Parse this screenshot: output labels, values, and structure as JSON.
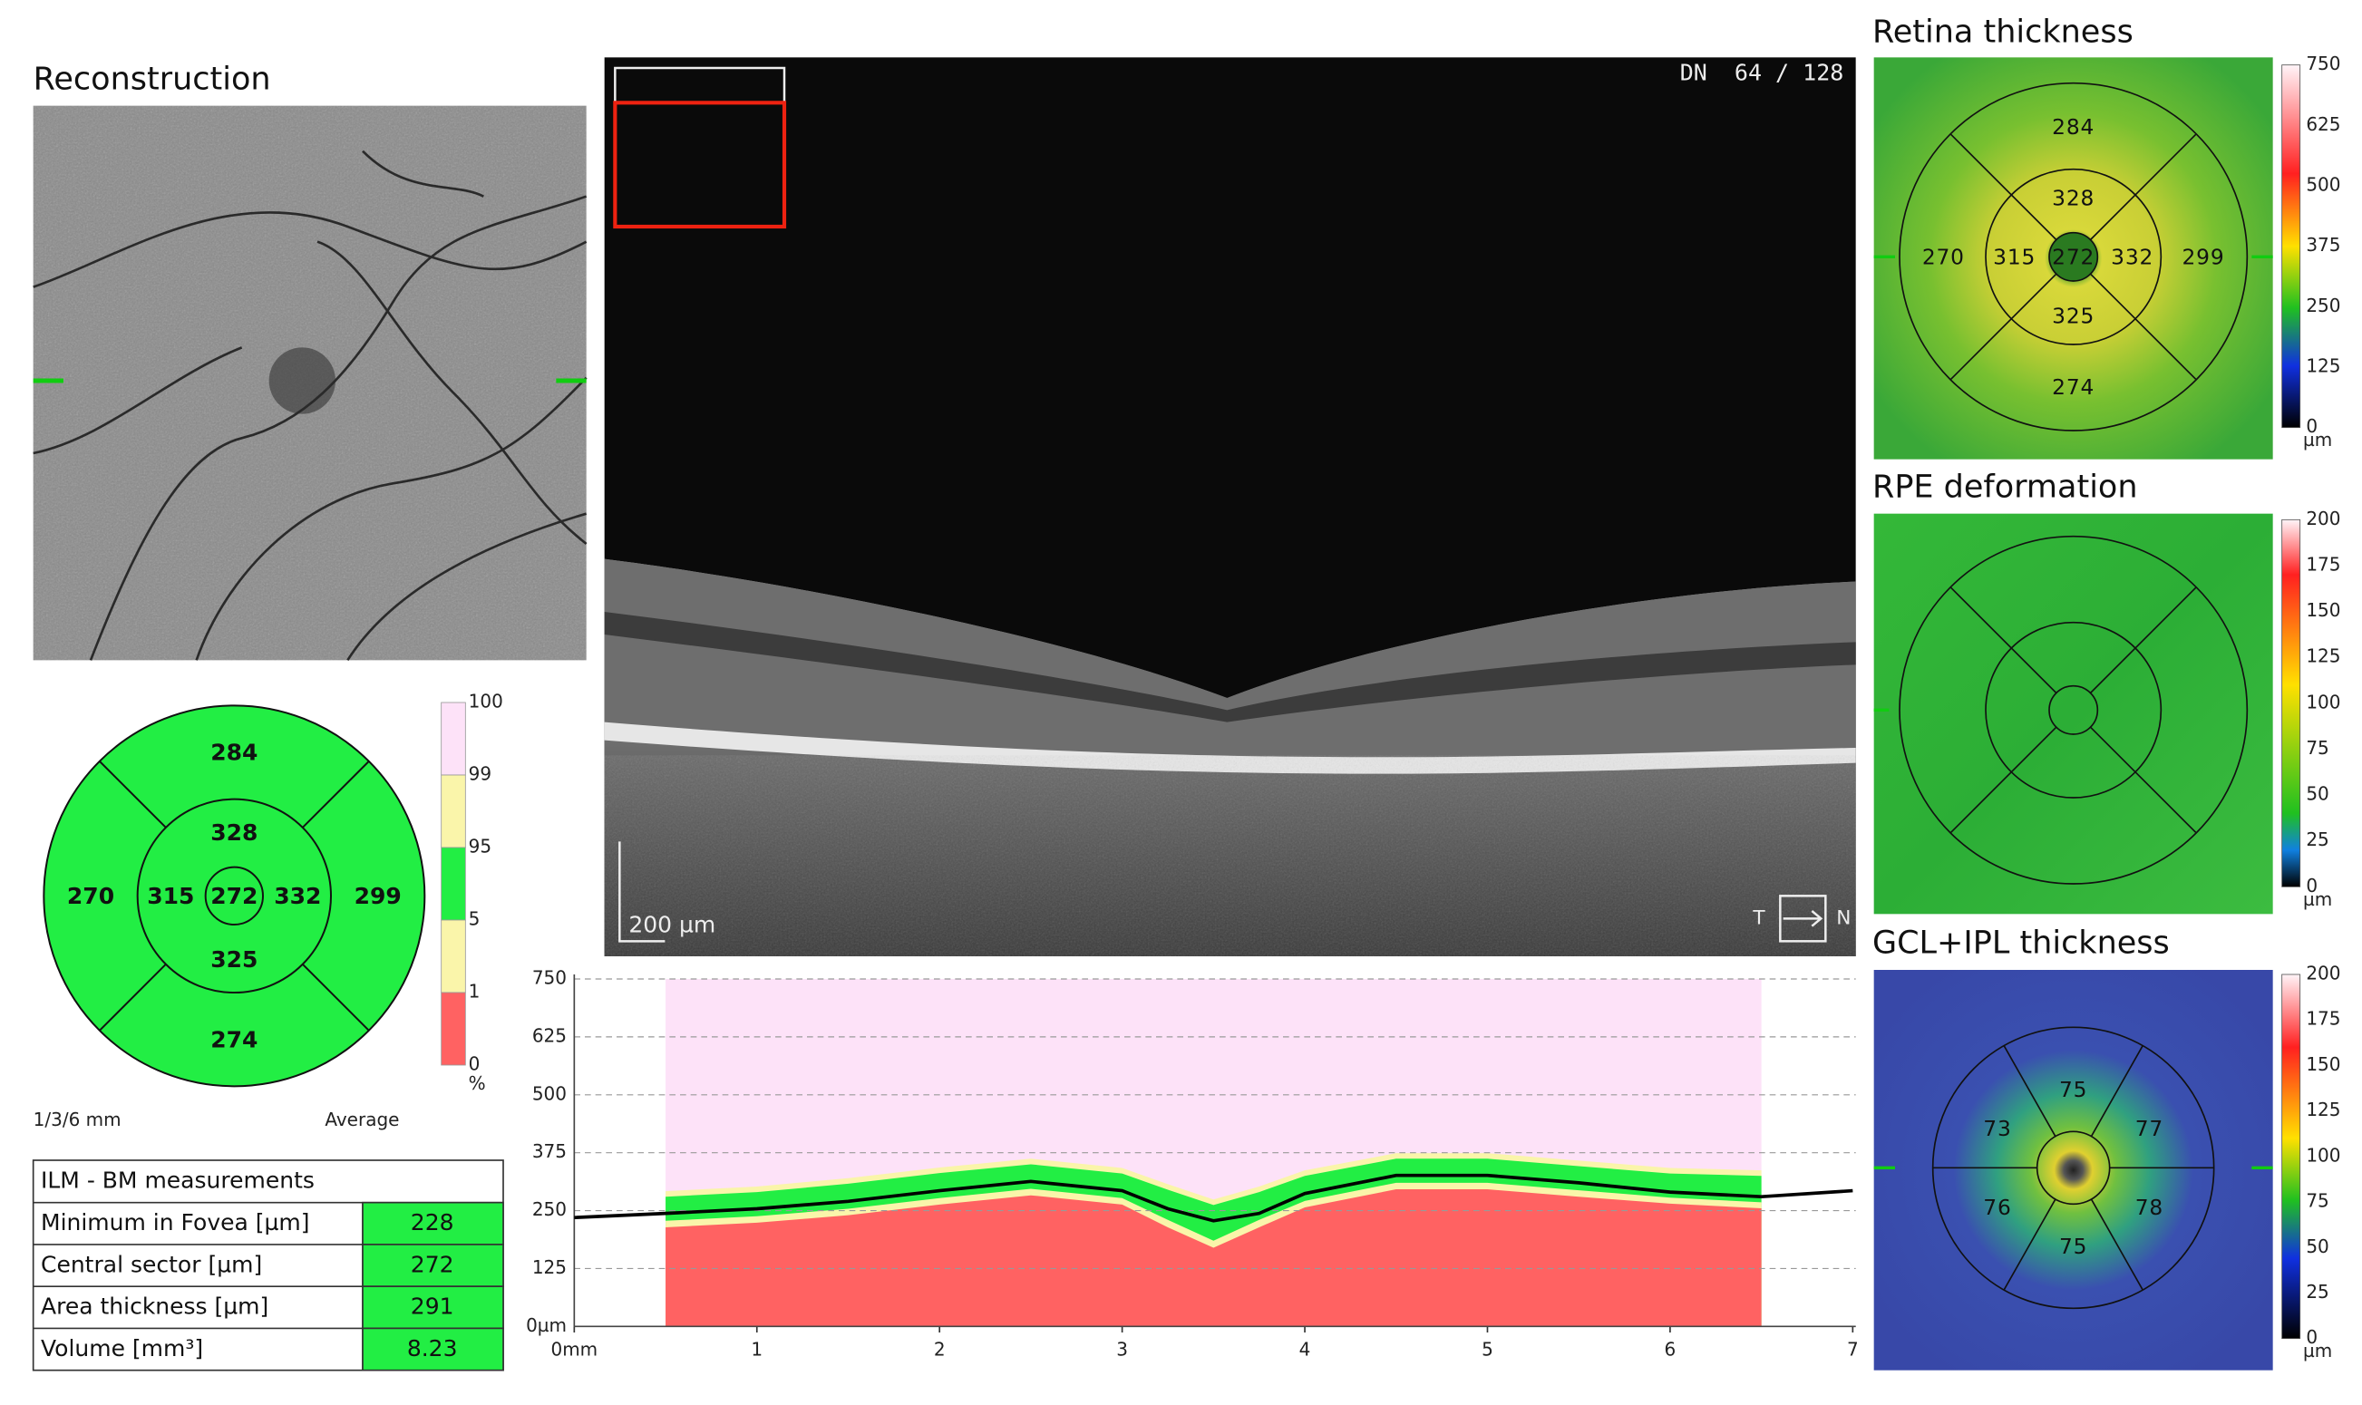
{
  "reconstruction": {
    "title": "Reconstruction"
  },
  "bscan": {
    "slice_label": "DN  64 / 128",
    "scale_bar": "200 µm",
    "temporal": "T",
    "nasal": "N"
  },
  "etdrs": {
    "center": 272,
    "inner": [
      328,
      332,
      325,
      315
    ],
    "outer": [
      284,
      299,
      274,
      270
    ],
    "caption_left": "1/3/6 mm",
    "caption_right": "Average",
    "percentile_ticks": [
      100,
      99,
      95,
      5,
      1,
      0
    ],
    "percentile_colors": [
      "#fde2f8",
      "#faf5aa",
      "#22ee44",
      "#faf5aa",
      "#ff6262"
    ],
    "percentile_unit": "%"
  },
  "measurements": {
    "title": "ILM - BM measurements",
    "rows": [
      {
        "label": "Minimum in Fovea [µm]",
        "value": 228
      },
      {
        "label": "Central sector [µm]",
        "value": 272
      },
      {
        "label": "Area thickness [µm]",
        "value": 291
      },
      {
        "label": "Volume [mm³]",
        "value": 8.23
      }
    ]
  },
  "profile": {
    "xlim": [
      0,
      7
    ],
    "ylim": [
      0,
      750
    ],
    "xticks": [
      {
        "value": 0,
        "label": "0mm"
      },
      1,
      2,
      3,
      4,
      5,
      6,
      7
    ],
    "yticks": [
      {
        "value": 0,
        "label": "0µm"
      },
      125,
      250,
      375,
      500,
      625,
      750
    ],
    "x": [
      0,
      0.5,
      1,
      1.5,
      2,
      2.5,
      3,
      3.25,
      3.5,
      3.75,
      4,
      4.5,
      5,
      5.5,
      6,
      6.5,
      7
    ],
    "values": [
      235,
      244,
      254,
      270,
      293,
      313,
      293,
      254,
      228,
      244,
      287,
      326,
      326,
      310,
      290,
      280,
      293
    ],
    "normative": {
      "x": [
        0.5,
        1,
        1.5,
        2,
        2.5,
        3,
        3.25,
        3.5,
        3.75,
        4,
        4.5,
        5,
        5.5,
        6,
        6.5
      ],
      "p1": [
        214,
        224,
        240,
        263,
        283,
        263,
        214,
        170,
        214,
        257,
        296,
        296,
        280,
        265,
        255
      ],
      "p5": [
        228,
        238,
        254,
        277,
        297,
        277,
        230,
        185,
        230,
        271,
        310,
        310,
        294,
        278,
        268
      ],
      "p95": [
        280,
        290,
        308,
        331,
        350,
        330,
        295,
        262,
        290,
        325,
        362,
        362,
        346,
        330,
        325
      ],
      "p99": [
        292,
        302,
        320,
        343,
        362,
        342,
        307,
        274,
        302,
        337,
        374,
        374,
        358,
        342,
        337
      ]
    }
  },
  "retina_map": {
    "title": "Retina thickness",
    "center": 272,
    "inner": [
      328,
      332,
      325,
      315
    ],
    "outer": [
      284,
      299,
      274,
      270
    ],
    "colorbar_ticks": [
      750,
      625,
      500,
      375,
      250,
      125,
      0
    ],
    "unit": "µm"
  },
  "rpe_map": {
    "title": "RPE deformation",
    "colorbar_ticks": [
      200,
      175,
      150,
      125,
      100,
      75,
      50,
      25,
      0
    ],
    "unit": "µm"
  },
  "gcl_map": {
    "title": "GCL+IPL thickness",
    "sectors": [
      75,
      77,
      78,
      75,
      76,
      73
    ],
    "colorbar_ticks": [
      200,
      175,
      150,
      125,
      100,
      75,
      50,
      25,
      0
    ],
    "unit": "µm"
  }
}
